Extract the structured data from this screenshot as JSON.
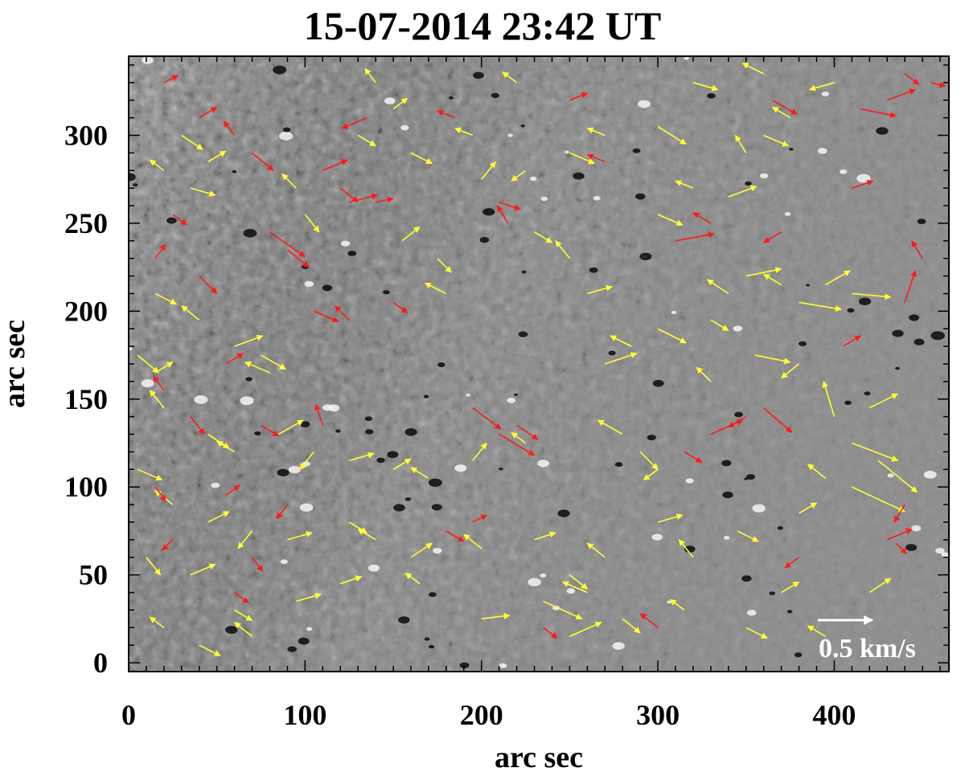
{
  "title": "15-07-2014  23:42 UT",
  "axes": {
    "xlabel": "arc sec",
    "ylabel": "arc sec",
    "xlim": [
      0,
      465
    ],
    "ylim": [
      -5,
      345
    ],
    "xticks": [
      0,
      100,
      200,
      300,
      400
    ],
    "yticks": [
      0,
      50,
      100,
      150,
      200,
      250,
      300
    ]
  },
  "scale_label": "0.5 km/s",
  "colors": {
    "background_gray": "#8c8c8c",
    "vector_red": "#ff1a1a",
    "vector_yellow": "#ffff33",
    "scale_arrow": "#ffffff"
  },
  "vectors_red": [
    [
      20,
      330,
      8,
      4
    ],
    [
      40,
      310,
      10,
      6
    ],
    [
      60,
      300,
      -6,
      8
    ],
    [
      70,
      290,
      12,
      -10
    ],
    [
      110,
      280,
      14,
      6
    ],
    [
      120,
      270,
      10,
      -8
    ],
    [
      25,
      255,
      8,
      -6
    ],
    [
      80,
      245,
      20,
      -14
    ],
    [
      90,
      235,
      12,
      -10
    ],
    [
      125,
      262,
      16,
      4
    ],
    [
      140,
      262,
      10,
      2
    ],
    [
      210,
      262,
      12,
      -4
    ],
    [
      215,
      250,
      -6,
      10
    ],
    [
      15,
      230,
      6,
      8
    ],
    [
      40,
      220,
      10,
      -10
    ],
    [
      105,
      200,
      14,
      -6
    ],
    [
      125,
      195,
      -8,
      8
    ],
    [
      150,
      205,
      8,
      -6
    ],
    [
      55,
      170,
      10,
      6
    ],
    [
      20,
      155,
      -6,
      8
    ],
    [
      35,
      140,
      8,
      -10
    ],
    [
      75,
      135,
      10,
      -6
    ],
    [
      110,
      135,
      -4,
      12
    ],
    [
      195,
      145,
      16,
      -12
    ],
    [
      210,
      130,
      20,
      -12
    ],
    [
      220,
      135,
      12,
      -8
    ],
    [
      15,
      100,
      6,
      -8
    ],
    [
      55,
      95,
      8,
      6
    ],
    [
      90,
      90,
      -6,
      -8
    ],
    [
      180,
      75,
      10,
      -6
    ],
    [
      195,
      80,
      8,
      4
    ],
    [
      25,
      70,
      -6,
      -6
    ],
    [
      70,
      60,
      6,
      -8
    ],
    [
      60,
      40,
      8,
      -6
    ],
    [
      235,
      20,
      8,
      -6
    ],
    [
      300,
      20,
      -10,
      8
    ],
    [
      350,
      140,
      -10,
      -6
    ],
    [
      360,
      145,
      16,
      -14
    ],
    [
      330,
      130,
      18,
      8
    ],
    [
      315,
      120,
      10,
      -6
    ],
    [
      440,
      90,
      -6,
      -10
    ],
    [
      430,
      70,
      14,
      6
    ],
    [
      435,
      68,
      6,
      -6
    ],
    [
      380,
      60,
      -8,
      -6
    ],
    [
      405,
      180,
      10,
      6
    ],
    [
      440,
      205,
      6,
      18
    ],
    [
      450,
      230,
      -6,
      10
    ],
    [
      310,
      240,
      22,
      4
    ],
    [
      330,
      250,
      -10,
      6
    ],
    [
      370,
      245,
      -10,
      -6
    ],
    [
      410,
      270,
      12,
      4
    ],
    [
      430,
      320,
      16,
      6
    ],
    [
      440,
      335,
      8,
      -6
    ],
    [
      455,
      330,
      8,
      -2
    ],
    [
      415,
      315,
      20,
      -4
    ],
    [
      365,
      320,
      14,
      -8
    ],
    [
      270,
      285,
      -10,
      4
    ],
    [
      250,
      320,
      10,
      4
    ],
    [
      185,
      310,
      -10,
      4
    ],
    [
      135,
      310,
      -14,
      -6
    ]
  ],
  "vectors_yellow": [
    [
      30,
      300,
      12,
      -8
    ],
    [
      45,
      285,
      10,
      6
    ],
    [
      20,
      280,
      -8,
      6
    ],
    [
      35,
      270,
      14,
      -4
    ],
    [
      95,
      270,
      -8,
      8
    ],
    [
      100,
      255,
      8,
      -10
    ],
    [
      130,
      300,
      10,
      -6
    ],
    [
      140,
      330,
      -6,
      8
    ],
    [
      150,
      315,
      8,
      6
    ],
    [
      160,
      290,
      12,
      -6
    ],
    [
      195,
      300,
      -10,
      4
    ],
    [
      200,
      275,
      8,
      10
    ],
    [
      225,
      280,
      -8,
      -6
    ],
    [
      230,
      245,
      10,
      -6
    ],
    [
      250,
      230,
      -8,
      10
    ],
    [
      260,
      210,
      14,
      4
    ],
    [
      175,
      230,
      8,
      -8
    ],
    [
      180,
      210,
      -12,
      6
    ],
    [
      155,
      240,
      10,
      8
    ],
    [
      15,
      210,
      12,
      -6
    ],
    [
      40,
      195,
      -10,
      8
    ],
    [
      60,
      180,
      16,
      6
    ],
    [
      75,
      175,
      14,
      -8
    ],
    [
      80,
      165,
      -14,
      6
    ],
    [
      5,
      175,
      12,
      -10
    ],
    [
      15,
      165,
      10,
      6
    ],
    [
      20,
      145,
      -8,
      10
    ],
    [
      45,
      130,
      12,
      -8
    ],
    [
      60,
      120,
      -10,
      6
    ],
    [
      85,
      130,
      14,
      8
    ],
    [
      105,
      120,
      -8,
      -10
    ],
    [
      125,
      115,
      14,
      4
    ],
    [
      150,
      110,
      10,
      6
    ],
    [
      170,
      105,
      -10,
      6
    ],
    [
      195,
      115,
      8,
      10
    ],
    [
      225,
      125,
      -8,
      6
    ],
    [
      5,
      110,
      14,
      -6
    ],
    [
      25,
      90,
      -10,
      8
    ],
    [
      45,
      80,
      12,
      6
    ],
    [
      70,
      75,
      -8,
      -10
    ],
    [
      90,
      70,
      14,
      4
    ],
    [
      125,
      80,
      10,
      -6
    ],
    [
      140,
      70,
      -10,
      6
    ],
    [
      160,
      60,
      12,
      8
    ],
    [
      10,
      60,
      8,
      -10
    ],
    [
      35,
      50,
      14,
      6
    ],
    [
      60,
      30,
      10,
      -6
    ],
    [
      20,
      20,
      -8,
      6
    ],
    [
      40,
      10,
      12,
      -6
    ],
    [
      70,
      15,
      -10,
      8
    ],
    [
      95,
      35,
      14,
      4
    ],
    [
      200,
      25,
      16,
      2
    ],
    [
      235,
      35,
      22,
      -10
    ],
    [
      250,
      15,
      18,
      8
    ],
    [
      260,
      40,
      -14,
      6
    ],
    [
      280,
      25,
      10,
      -8
    ],
    [
      315,
      30,
      -8,
      6
    ],
    [
      350,
      20,
      12,
      -6
    ],
    [
      370,
      40,
      10,
      6
    ],
    [
      395,
      15,
      -10,
      6
    ],
    [
      420,
      40,
      12,
      8
    ],
    [
      270,
      60,
      -10,
      8
    ],
    [
      300,
      80,
      14,
      4
    ],
    [
      320,
      60,
      -8,
      10
    ],
    [
      345,
      75,
      12,
      -6
    ],
    [
      380,
      85,
      10,
      6
    ],
    [
      395,
      105,
      -10,
      8
    ],
    [
      410,
      100,
      30,
      -14
    ],
    [
      425,
      115,
      22,
      -18
    ],
    [
      400,
      140,
      -6,
      20
    ],
    [
      410,
      125,
      26,
      -10
    ],
    [
      420,
      145,
      16,
      8
    ],
    [
      280,
      130,
      -14,
      8
    ],
    [
      290,
      120,
      10,
      -10
    ],
    [
      300,
      110,
      -8,
      -6
    ],
    [
      270,
      170,
      18,
      6
    ],
    [
      285,
      180,
      -12,
      6
    ],
    [
      300,
      190,
      16,
      -8
    ],
    [
      330,
      195,
      10,
      -6
    ],
    [
      340,
      210,
      -12,
      8
    ],
    [
      350,
      220,
      20,
      4
    ],
    [
      370,
      215,
      -10,
      6
    ],
    [
      380,
      205,
      24,
      -4
    ],
    [
      395,
      215,
      14,
      8
    ],
    [
      410,
      210,
      22,
      -2
    ],
    [
      300,
      255,
      14,
      -6
    ],
    [
      320,
      270,
      -10,
      4
    ],
    [
      340,
      265,
      16,
      6
    ],
    [
      350,
      290,
      -6,
      10
    ],
    [
      360,
      300,
      14,
      -6
    ],
    [
      375,
      310,
      -10,
      6
    ],
    [
      300,
      305,
      16,
      -10
    ],
    [
      270,
      300,
      -10,
      4
    ],
    [
      250,
      290,
      14,
      -6
    ],
    [
      220,
      330,
      -8,
      6
    ],
    [
      320,
      330,
      14,
      -4
    ],
    [
      360,
      335,
      -12,
      6
    ],
    [
      400,
      330,
      -14,
      -4
    ],
    [
      330,
      160,
      -8,
      8
    ],
    [
      355,
      175,
      20,
      -4
    ],
    [
      380,
      170,
      -10,
      -8
    ],
    [
      200,
      65,
      -10,
      8
    ],
    [
      230,
      70,
      12,
      4
    ],
    [
      250,
      50,
      10,
      -8
    ],
    [
      165,
      45,
      -8,
      6
    ],
    [
      120,
      45,
      12,
      4
    ]
  ]
}
